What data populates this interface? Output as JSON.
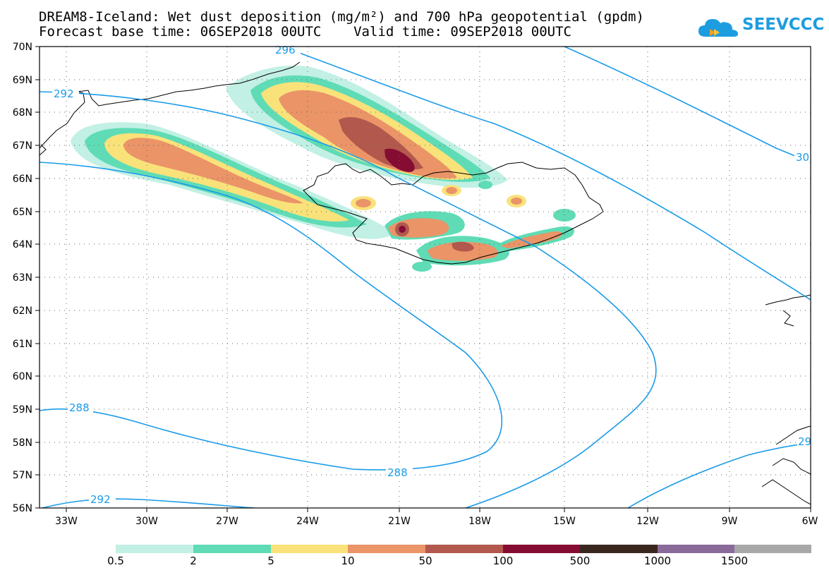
{
  "title_line1": "DREAM8-Iceland: Wet dust deposition (mg/m²) and 700 hPa geopotential (gpdm)",
  "title_line2": "Forecast base time: 06SEP2018 00UTC    Valid time: 09SEP2018 00UTC",
  "logo_text": "SEEVCCC",
  "lat_labels": [
    "70N",
    "69N",
    "68N",
    "67N",
    "66N",
    "65N",
    "64N",
    "63N",
    "62N",
    "61N",
    "60N",
    "59N",
    "58N",
    "57N",
    "56N"
  ],
  "lon_labels": [
    "33W",
    "30W",
    "27W",
    "24W",
    "21W",
    "18W",
    "15W",
    "12W",
    "9W",
    "6W"
  ],
  "contour_labels": {
    "c296_top": "296",
    "c292_left": "292",
    "c300_right": "30",
    "c288_left": "288",
    "c288_mid": "288",
    "c292_bottom": "292",
    "c29_right": "29"
  },
  "colorbar": {
    "colors": [
      "#c2f0e4",
      "#5fdcb5",
      "#f9e27a",
      "#ea9468",
      "#b2584d",
      "#850c33",
      "#3a2820",
      "#8a6a9a",
      "#a8a8a8"
    ],
    "labels": [
      "0.5",
      "2",
      "5",
      "10",
      "50",
      "100",
      "500",
      "1000",
      "1500"
    ]
  },
  "colors": {
    "contour": "#1a9be8",
    "logo": "#1d9de0"
  }
}
